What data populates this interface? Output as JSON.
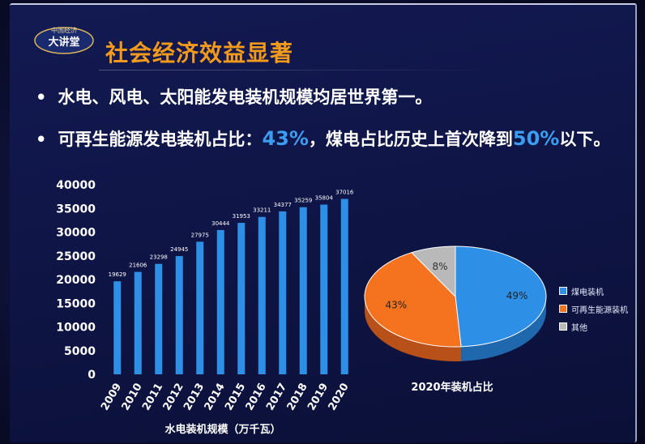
{
  "slide": {
    "title": "社会经济效益显著",
    "bullet1": "水电、风电、太阳能发电装机规模均居世界第一。",
    "bullet2_prefix": "可再生能源发电装机占比：",
    "bullet2_value1": "43%",
    "bullet2_middle": "，煤电占比历史上首次降到",
    "bullet2_value2": "50%",
    "bullet2_suffix": "以下。",
    "logo_text": "大讲堂",
    "logo_small": "中国经济"
  },
  "colors": {
    "title": "#f29a1c",
    "highlight": "#3b9cf0",
    "bar": "#2e8fe6",
    "pie_coal": "#2e8fe6",
    "pie_renewable": "#f5731f",
    "pie_other": "#b9b9b9"
  },
  "chart_data": [
    {
      "type": "bar",
      "categories": [
        "2009",
        "2010",
        "2011",
        "2012",
        "2013",
        "2014",
        "2015",
        "2016",
        "2017",
        "2018",
        "2019",
        "2020"
      ],
      "values": [
        19629,
        21606,
        23298,
        24945,
        27975,
        30444,
        31953,
        33211,
        34377,
        35259,
        35804,
        37016
      ],
      "title": "",
      "xlabel": "水电装机规模（万千瓦）",
      "ylabel": "",
      "ylim": [
        0,
        40000
      ],
      "yticks": [
        0,
        5000,
        10000,
        15000,
        20000,
        25000,
        30000,
        35000,
        40000
      ],
      "grid": false,
      "data_labels": true
    },
    {
      "type": "pie",
      "title": "2020年装机占比",
      "labels": [
        "煤电装机",
        "可再生能源装机",
        "其他"
      ],
      "values": [
        49,
        43,
        8
      ],
      "value_labels": [
        "49%",
        "43%",
        "8%"
      ],
      "legend": "right"
    }
  ]
}
